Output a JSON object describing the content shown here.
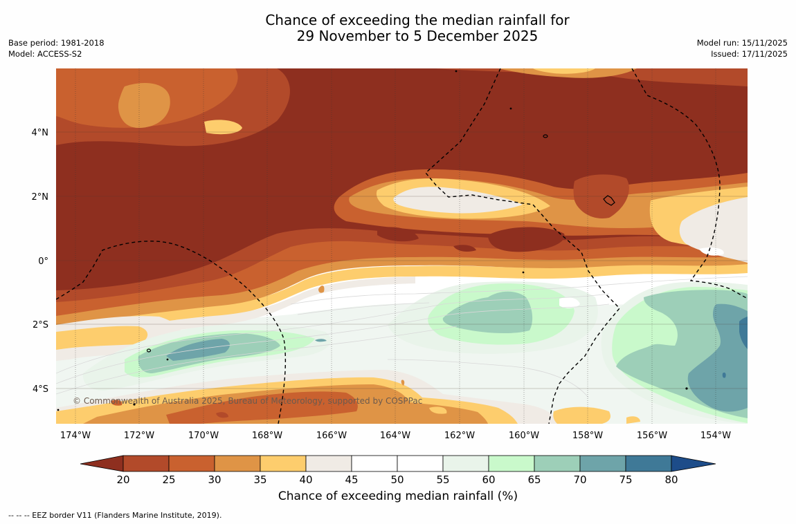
{
  "header": {
    "title_line1": "Chance of exceeding the median rainfall for",
    "title_line2": "29 November to 5 December 2025",
    "base_period": "Base period: 1981-2018",
    "model": "Model: ACCESS-S2",
    "model_run": "Model run: 15/11/2025",
    "issued": "Issued: 17/11/2025"
  },
  "map": {
    "latitude_labels": [
      {
        "value": 4,
        "label": "4°N"
      },
      {
        "value": 2,
        "label": "2°N"
      },
      {
        "value": 0,
        "label": "0°"
      },
      {
        "value": -2,
        "label": "2°S"
      },
      {
        "value": -4,
        "label": "4°S"
      }
    ],
    "longitude_labels": [
      {
        "value": -174,
        "label": "174°W"
      },
      {
        "value": -172,
        "label": "172°W"
      },
      {
        "value": -170,
        "label": "170°W"
      },
      {
        "value": -168,
        "label": "168°W"
      },
      {
        "value": -166,
        "label": "166°W"
      },
      {
        "value": -164,
        "label": "164°W"
      },
      {
        "value": -162,
        "label": "162°W"
      },
      {
        "value": -160,
        "label": "160°W"
      },
      {
        "value": -158,
        "label": "158°W"
      },
      {
        "value": -156,
        "label": "156°W"
      },
      {
        "value": -154,
        "label": "154°W"
      }
    ],
    "copyright": "© Commonwealth of Australia 2025, Bureau of Meteorology, supported by COSPPac"
  },
  "colorbar": {
    "label": "Chance of exceeding median rainfall (%)",
    "ticks": [
      "20",
      "25",
      "30",
      "35",
      "40",
      "45",
      "50",
      "55",
      "60",
      "65",
      "70",
      "75",
      "80"
    ],
    "colors": {
      "below_20": "#8e2f1f",
      "20_25": "#b24a2a",
      "25_30": "#c9612f",
      "30_35": "#df9446",
      "35_40": "#fdcd6d",
      "40_45": "#f0ebe5",
      "45_50": "#ffffff",
      "50_55": "#ffffff",
      "55_60": "#e9f4ea",
      "60_65": "#c9f9cb",
      "65_70": "#9dcfb8",
      "70_75": "#6ea4a9",
      "75_80": "#3f7997",
      "above_80": "#1d4c89"
    }
  },
  "footnote": "--  --  -- EEZ border V11 (Flanders Marine Institute, 2019)."
}
